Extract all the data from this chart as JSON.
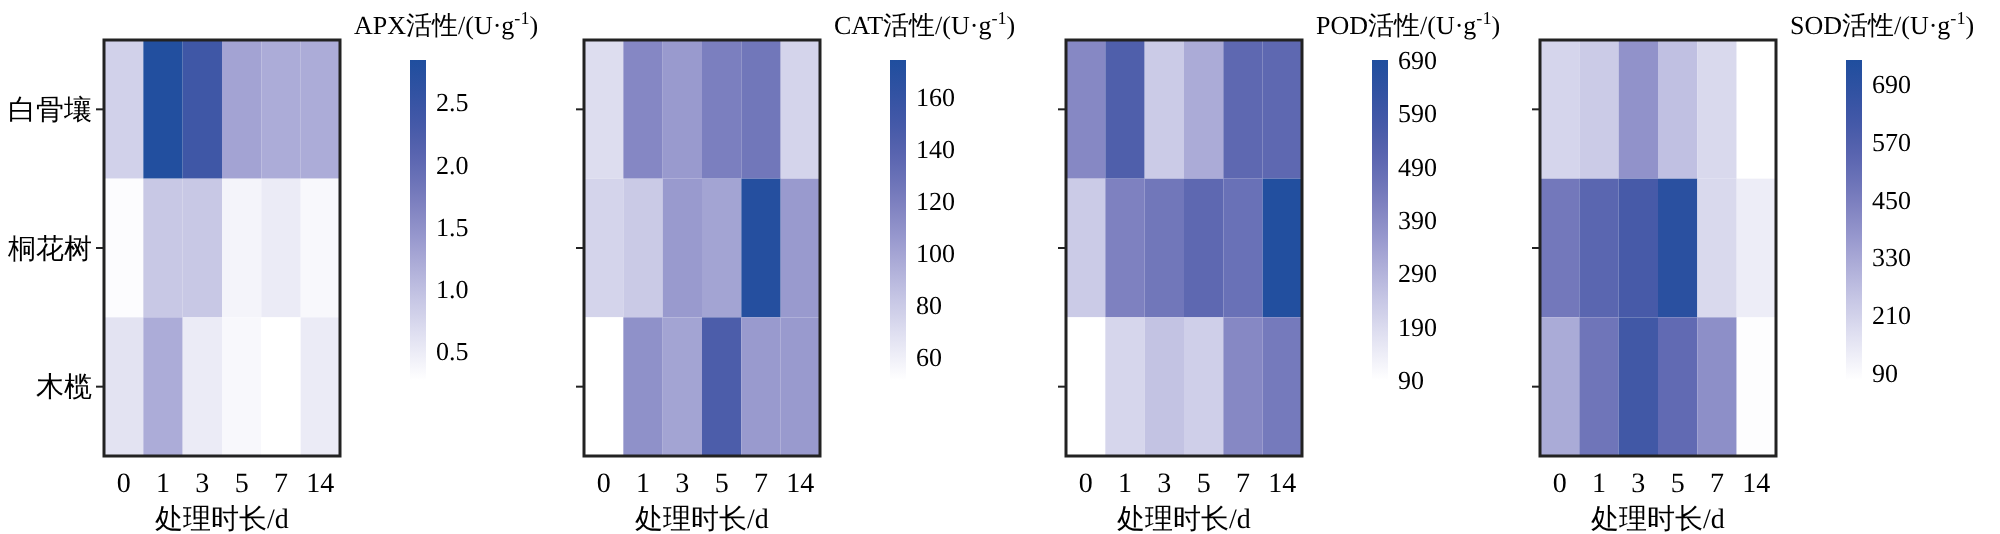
{
  "chart_data": [
    {
      "type": "heatmap",
      "xlabel": "处理时长/d",
      "clabel": "APX活性/(U·g$^{-1}$)",
      "categories": [
        "0",
        "1",
        "3",
        "5",
        "7",
        "14"
      ],
      "y_categories": [
        "白骨壤",
        "桐花树",
        "木榄"
      ],
      "cells": [
        [
          0.8,
          2.8,
          2.4,
          1.3,
          1.2,
          1.2
        ],
        [
          0.3,
          0.9,
          0.9,
          0.4,
          0.5,
          0.35
        ],
        [
          0.6,
          1.2,
          0.5,
          0.35,
          0.27,
          0.5
        ]
      ],
      "clim": [
        0.27,
        2.84
      ],
      "cticks": [
        0.5,
        {
          "value": 1,
          "label": "1.0"
        },
        1.5,
        {
          "value": 2,
          "label": "2.0"
        },
        2.5
      ]
    },
    {
      "type": "heatmap",
      "xlabel": "处理时长/d",
      "clabel": "CAT活性/(U·g$^{-1}$)",
      "categories": [
        "0",
        "1",
        "3",
        "5",
        "7",
        "14"
      ],
      "y_categories": [
        null,
        null,
        null
      ],
      "cells": [
        [
          70,
          115,
          105,
          120,
          125,
          75
        ],
        [
          75,
          80,
          105,
          100,
          170,
          105
        ],
        [
          51,
          110,
          100,
          145,
          105,
          105
        ]
      ],
      "clim": [
        51,
        174
      ],
      "cticks": [
        60,
        80,
        100,
        120,
        140,
        160
      ]
    },
    {
      "type": "heatmap",
      "xlabel": "处理时长/d",
      "clabel": "POD活性/(U·g$^{-1}$)",
      "categories": [
        "0",
        "1",
        "3",
        "5",
        "7",
        "14"
      ],
      "y_categories": [
        null,
        null,
        null
      ],
      "cells": [
        [
          400,
          540,
          230,
          310,
          500,
          500
        ],
        [
          230,
          420,
          450,
          500,
          470,
          680
        ],
        [
          90,
          200,
          250,
          220,
          400,
          440
        ]
      ],
      "clim": [
        90,
        690
      ],
      "cticks": [
        90,
        190,
        290,
        390,
        490,
        590,
        690
      ]
    },
    {
      "type": "heatmap",
      "xlabel": "处理时长/d",
      "clabel": "SOD活性/(U·g$^{-1}$)",
      "categories": [
        "0",
        "1",
        "3",
        "5",
        "7",
        "14"
      ],
      "y_categories": [
        null,
        null,
        null
      ],
      "cells": [
        [
          200,
          230,
          390,
          260,
          190,
          75
        ],
        [
          470,
          540,
          600,
          700,
          190,
          130
        ],
        [
          320,
          480,
          620,
          520,
          400,
          80
        ]
      ],
      "clim": [
        75,
        740
      ],
      "cticks": [
        90,
        210,
        330,
        450,
        570,
        690
      ]
    }
  ]
}
